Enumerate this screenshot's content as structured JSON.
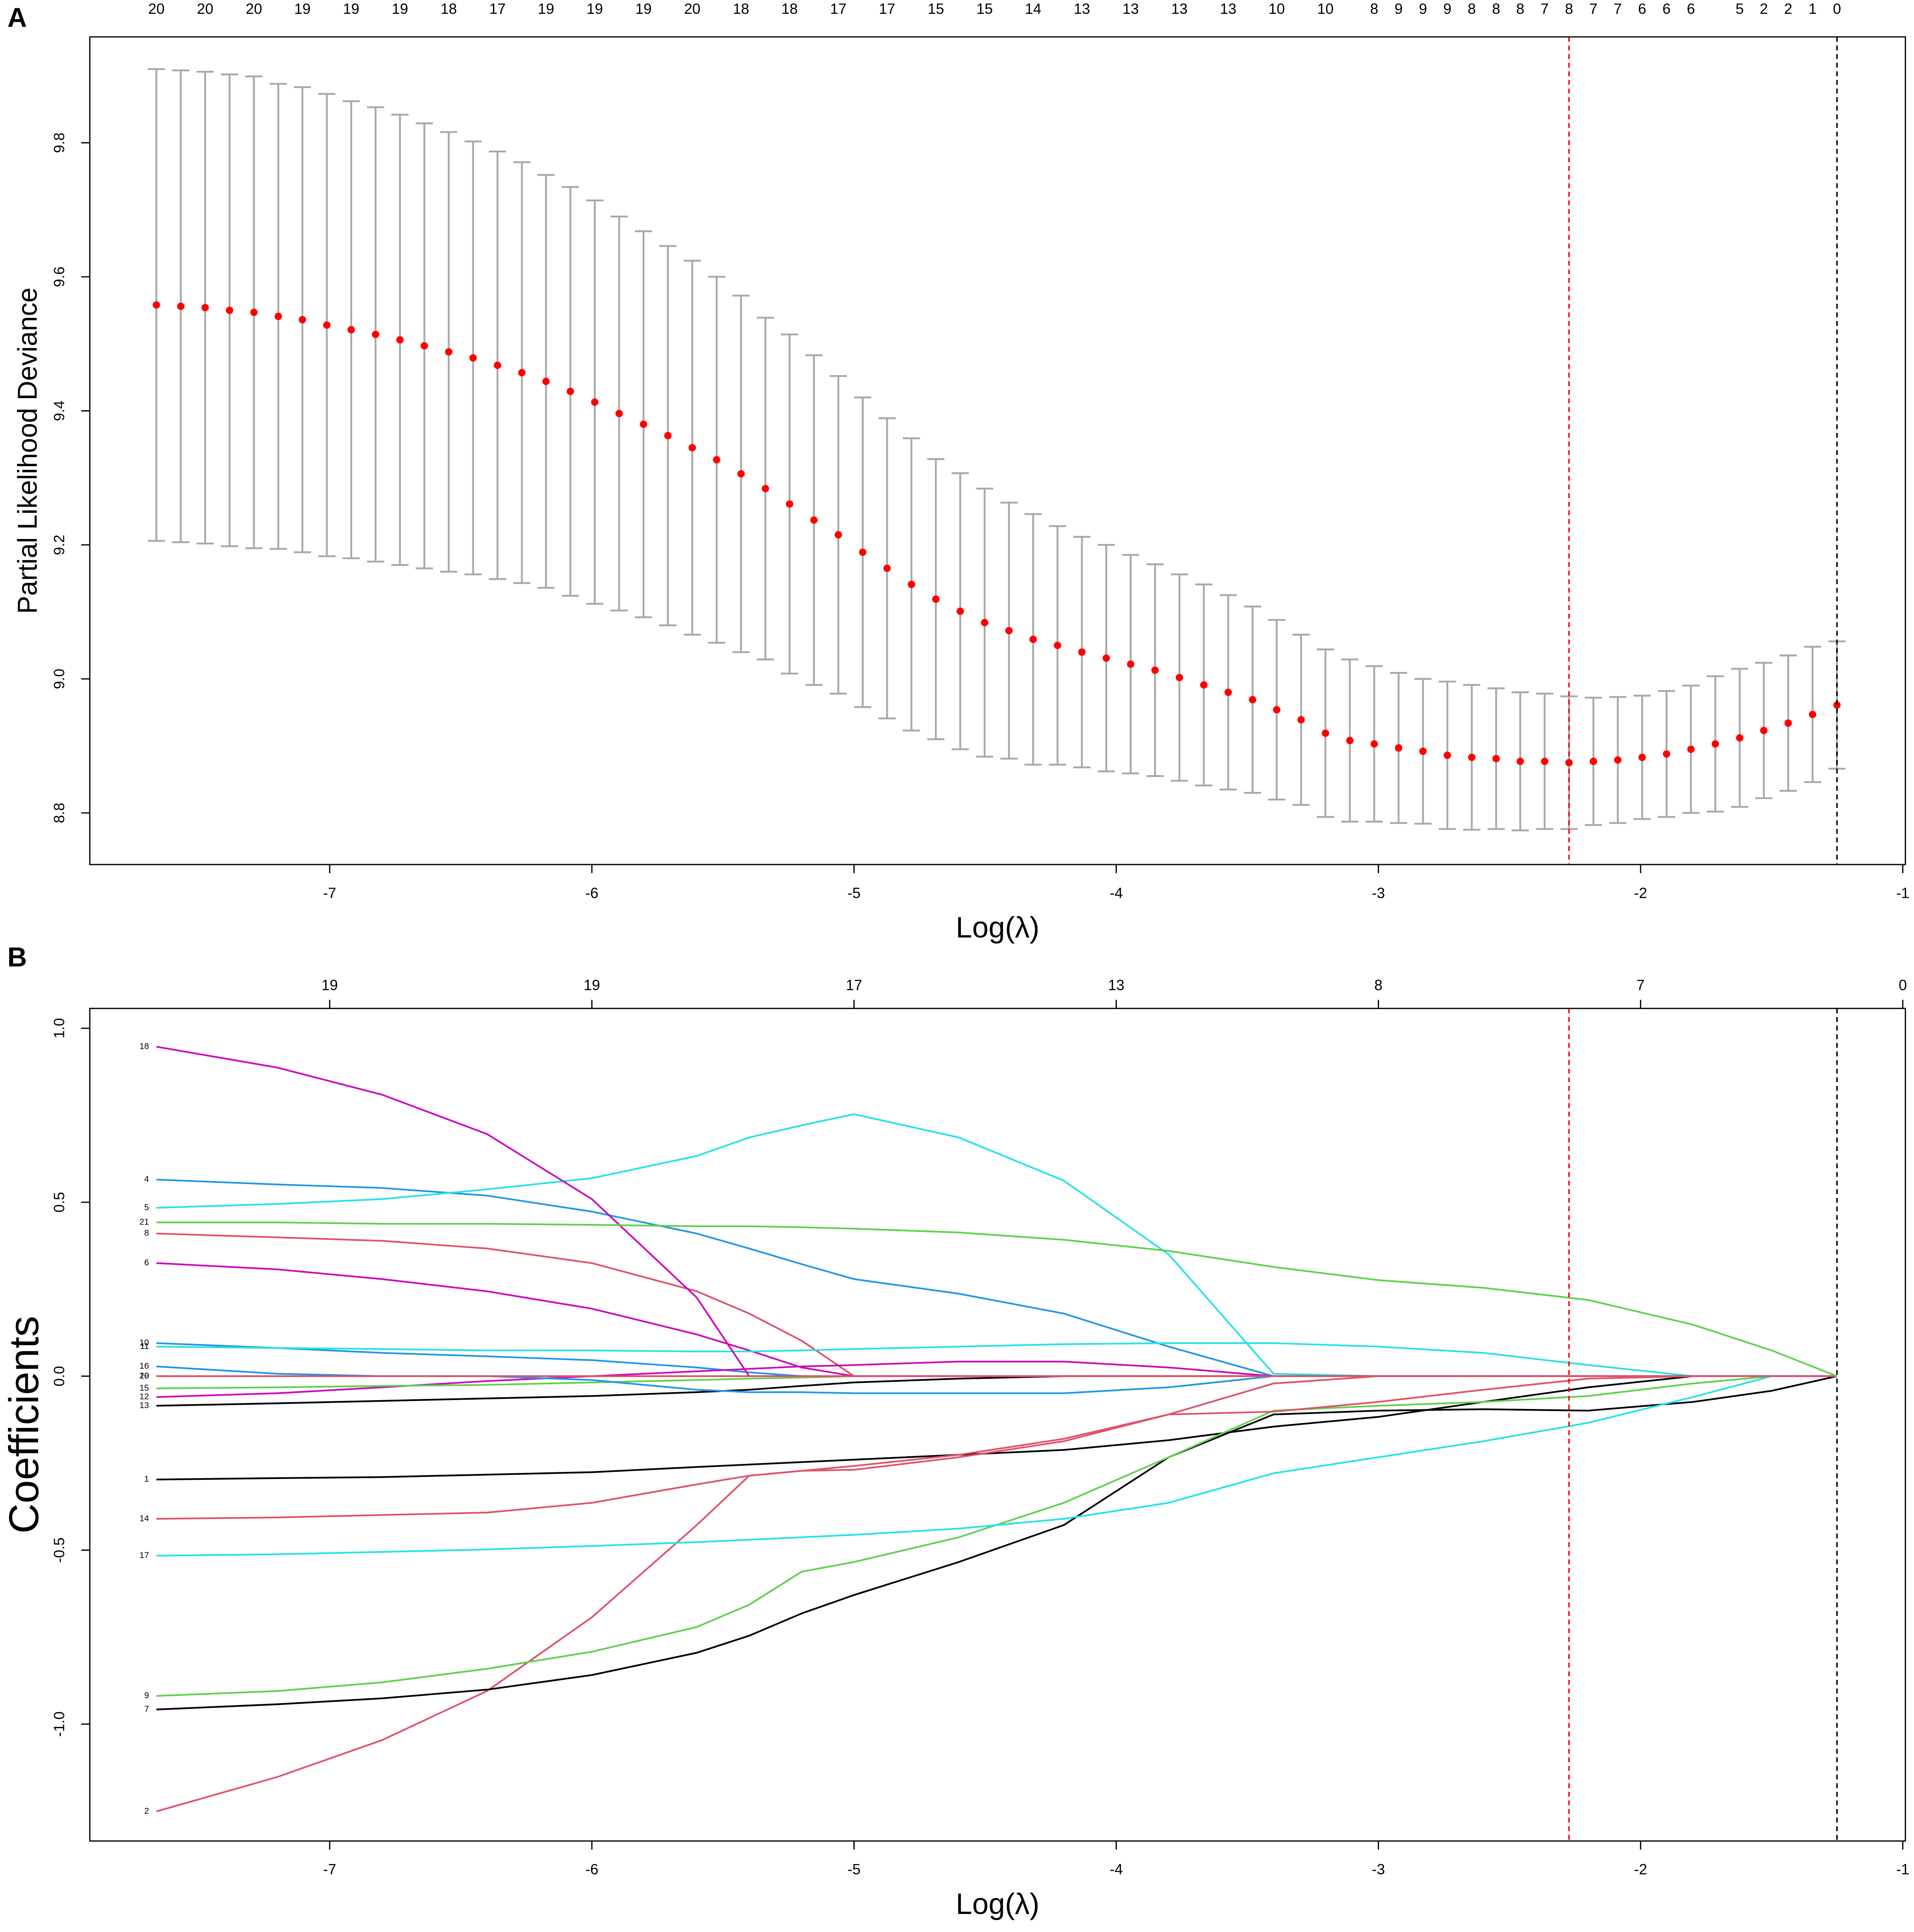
{
  "chart_data": [
    {
      "type": "errorbar",
      "panel": "A",
      "xlabel": "Log(λ)",
      "ylabel": "Partial Likelihood Deviance",
      "color": "#ff0000",
      "error_color": "#a8a8a8",
      "xlim": [
        -7.915,
        -0.99
      ],
      "ylim": [
        8.723,
        9.958
      ],
      "xticks": [
        -7,
        -6,
        -5,
        -4,
        -3,
        -2,
        -1
      ],
      "yticks": [
        8.8,
        {
          "value": 9,
          "label": "9.0"
        },
        9.2,
        9.4,
        9.6,
        9.8
      ],
      "top_ticks": [
        {
          "value": -7.661,
          "label": "20"
        },
        {
          "value": -7.475,
          "label": "20"
        },
        {
          "value": -7.289,
          "label": "20"
        },
        {
          "value": -7.104,
          "label": "19"
        },
        {
          "value": -6.918,
          "label": "19"
        },
        {
          "value": -6.732,
          "label": "19"
        },
        {
          "value": -6.546,
          "label": "18"
        },
        {
          "value": -6.36,
          "label": "17"
        },
        {
          "value": -6.175,
          "label": "19"
        },
        {
          "value": -5.989,
          "label": "19"
        },
        {
          "value": -5.803,
          "label": "19"
        },
        {
          "value": -5.617,
          "label": "20"
        },
        {
          "value": -5.431,
          "label": "18"
        },
        {
          "value": -5.246,
          "label": "18"
        },
        {
          "value": -5.06,
          "label": "17"
        },
        {
          "value": -4.874,
          "label": "17"
        },
        {
          "value": -4.688,
          "label": "15"
        },
        {
          "value": -4.502,
          "label": "15"
        },
        {
          "value": -4.317,
          "label": "14"
        },
        {
          "value": -4.131,
          "label": "13"
        },
        {
          "value": -3.945,
          "label": "13"
        },
        {
          "value": -3.759,
          "label": "13"
        },
        {
          "value": -3.573,
          "label": "13"
        },
        {
          "value": -3.388,
          "label": "10"
        },
        {
          "value": -3.202,
          "label": "10"
        },
        {
          "value": -3.016,
          "label": "8"
        },
        {
          "value": -2.923,
          "label": "9"
        },
        {
          "value": -2.83,
          "label": "9"
        },
        {
          "value": -2.737,
          "label": "9"
        },
        {
          "value": -2.644,
          "label": "8"
        },
        {
          "value": -2.551,
          "label": "8"
        },
        {
          "value": -2.459,
          "label": "8"
        },
        {
          "value": -2.366,
          "label": "7"
        },
        {
          "value": -2.273,
          "label": "8"
        },
        {
          "value": -2.18,
          "label": "7"
        },
        {
          "value": -2.087,
          "label": "7"
        },
        {
          "value": -1.994,
          "label": "6"
        },
        {
          "value": -1.901,
          "label": "6"
        },
        {
          "value": -1.808,
          "label": "6"
        },
        {
          "value": -1.622,
          "label": "5"
        },
        {
          "value": -1.53,
          "label": "2"
        },
        {
          "value": -1.437,
          "label": "2"
        },
        {
          "value": -1.344,
          "label": "1"
        },
        {
          "value": -1.251,
          "label": "0"
        }
      ],
      "vlines": [
        {
          "value": -2.273,
          "color": "#ff0000"
        },
        {
          "value": -1.251,
          "color": "#000000"
        }
      ],
      "x": [
        -7.661,
        -7.568,
        -7.475,
        -7.382,
        -7.289,
        -7.196,
        -7.104,
        -7.011,
        -6.918,
        -6.825,
        -6.732,
        -6.639,
        -6.546,
        -6.453,
        -6.36,
        -6.267,
        -6.175,
        -6.082,
        -5.989,
        -5.896,
        -5.803,
        -5.71,
        -5.617,
        -5.524,
        -5.431,
        -5.338,
        -5.246,
        -5.153,
        -5.06,
        -4.967,
        -4.874,
        -4.781,
        -4.688,
        -4.595,
        -4.502,
        -4.409,
        -4.317,
        -4.224,
        -4.131,
        -4.038,
        -3.945,
        -3.852,
        -3.759,
        -3.666,
        -3.573,
        -3.48,
        -3.388,
        -3.295,
        -3.202,
        -3.109,
        -3.016,
        -2.923,
        -2.83,
        -2.737,
        -2.644,
        -2.551,
        -2.459,
        -2.366,
        -2.273,
        -2.18,
        -2.087,
        -1.994,
        -1.901,
        -1.808,
        -1.715,
        -1.622,
        -1.53,
        -1.437,
        -1.344,
        -1.251
      ],
      "values": [
        9.558,
        9.556,
        9.554,
        9.55,
        9.547,
        9.541,
        9.536,
        9.528,
        9.521,
        9.514,
        9.506,
        9.497,
        9.488,
        9.479,
        9.468,
        9.457,
        9.444,
        9.429,
        9.413,
        9.396,
        9.38,
        9.363,
        9.345,
        9.327,
        9.306,
        9.284,
        9.261,
        9.237,
        9.215,
        9.189,
        9.165,
        9.141,
        9.119,
        9.101,
        9.084,
        9.072,
        9.059,
        9.05,
        9.04,
        9.031,
        9.022,
        9.013,
        9.002,
        8.991,
        8.98,
        8.969,
        8.954,
        8.939,
        8.919,
        8.908,
        8.903,
        8.897,
        8.892,
        8.886,
        8.883,
        8.881,
        8.877,
        8.877,
        8.875,
        8.877,
        8.879,
        8.883,
        8.888,
        8.895,
        8.903,
        8.912,
        8.923,
        8.934,
        8.947,
        8.961
      ],
      "errors": [
        0.352,
        0.352,
        0.352,
        0.352,
        0.352,
        0.347,
        0.347,
        0.345,
        0.341,
        0.339,
        0.336,
        0.332,
        0.328,
        0.323,
        0.319,
        0.314,
        0.308,
        0.305,
        0.301,
        0.294,
        0.288,
        0.283,
        0.279,
        0.273,
        0.266,
        0.255,
        0.253,
        0.246,
        0.237,
        0.231,
        0.224,
        0.218,
        0.209,
        0.206,
        0.2,
        0.191,
        0.187,
        0.178,
        0.172,
        0.169,
        0.163,
        0.158,
        0.154,
        0.15,
        0.145,
        0.139,
        0.134,
        0.127,
        0.125,
        0.121,
        0.116,
        0.112,
        0.108,
        0.11,
        0.108,
        0.105,
        0.103,
        0.101,
        0.099,
        0.095,
        0.094,
        0.092,
        0.094,
        0.095,
        0.101,
        0.103,
        0.101,
        0.101,
        0.101,
        0.095
      ]
    },
    {
      "type": "line",
      "panel": "B",
      "xlabel": "Log(λ)",
      "ylabel": "Coefficients",
      "xlim": [
        -7.915,
        -0.99
      ],
      "ylim": [
        -1.336,
        1.057
      ],
      "xticks": [
        -7,
        -6,
        -5,
        -4,
        -3,
        -2,
        -1
      ],
      "yticks": [
        {
          "value": -1,
          "label": "-1.0"
        },
        -0.5,
        {
          "value": 0,
          "label": "0.0"
        },
        0.5,
        {
          "value": 1,
          "label": "1.0"
        }
      ],
      "top_ticks": [
        {
          "value": -7,
          "label": "19"
        },
        {
          "value": -6,
          "label": "19"
        },
        {
          "value": -5,
          "label": "17"
        },
        {
          "value": -4,
          "label": "13"
        },
        {
          "value": -3,
          "label": "8"
        },
        {
          "value": -2,
          "label": "7"
        },
        {
          "value": -1,
          "label": "0"
        }
      ],
      "vlines": [
        {
          "value": -2.273,
          "color": "#ff0000"
        },
        {
          "value": -1.251,
          "color": "#000000"
        }
      ],
      "x": [
        -7.661,
        -7.2,
        -6.8,
        -6.4,
        -6.0,
        -5.6,
        -5.4,
        -5.2,
        -5.0,
        -4.6,
        -4.2,
        -3.8,
        -3.4,
        -3.0,
        -2.6,
        -2.2,
        -1.8,
        -1.5,
        -1.251
      ],
      "series": [
        {
          "name": "1",
          "color": "#000000",
          "values": [
            -0.297,
            -0.293,
            -0.29,
            -0.283,
            -0.276,
            -0.261,
            -0.254,
            -0.247,
            -0.24,
            -0.226,
            -0.212,
            -0.184,
            -0.145,
            -0.117,
            -0.074,
            -0.032,
            0,
            0,
            0
          ]
        },
        {
          "name": "2",
          "color": "#df536b",
          "values": [
            -1.251,
            -1.152,
            -1.046,
            -0.905,
            -0.693,
            -0.428,
            -0.286,
            -0.272,
            -0.269,
            -0.233,
            -0.187,
            -0.11,
            -0.021,
            0,
            0,
            0,
            0,
            0,
            0
          ]
        },
        {
          "name": "4",
          "color": "#2297e6",
          "values": [
            0.565,
            0.551,
            0.541,
            0.519,
            0.473,
            0.41,
            0.367,
            0.322,
            0.279,
            0.237,
            0.18,
            0.085,
            0,
            0,
            0,
            0,
            0,
            0,
            0
          ]
        },
        {
          "name": "5",
          "color": "#28e2e5",
          "values": [
            0.484,
            0.495,
            0.509,
            0.537,
            0.569,
            0.633,
            0.686,
            0.721,
            0.753,
            0.686,
            0.562,
            0.35,
            0.007,
            0,
            0,
            0,
            0,
            0,
            0
          ]
        },
        {
          "name": "6",
          "color": "#cd0bbc",
          "values": [
            0.325,
            0.307,
            0.279,
            0.244,
            0.194,
            0.12,
            0.074,
            0.025,
            0,
            0,
            0,
            0,
            0,
            0,
            0,
            0,
            0,
            0,
            0
          ]
        },
        {
          "name": "7",
          "color": "#000000",
          "values": [
            -0.958,
            -0.943,
            -0.926,
            -0.901,
            -0.859,
            -0.795,
            -0.746,
            -0.682,
            -0.629,
            -0.534,
            -0.428,
            -0.233,
            -0.11,
            -0.099,
            -0.095,
            -0.099,
            -0.074,
            -0.042,
            0
          ]
        },
        {
          "name": "8",
          "color": "#df536b",
          "values": [
            0.41,
            0.399,
            0.389,
            0.367,
            0.325,
            0.244,
            0.18,
            0.102,
            0,
            0,
            0,
            0,
            0,
            0,
            0,
            0,
            0,
            0,
            0
          ]
        },
        {
          "name": "9",
          "color": "#61d04f",
          "values": [
            -0.919,
            -0.905,
            -0.88,
            -0.841,
            -0.792,
            -0.721,
            -0.657,
            -0.562,
            -0.534,
            -0.463,
            -0.364,
            -0.233,
            -0.099,
            -0.085,
            -0.074,
            -0.057,
            -0.021,
            0,
            0
          ]
        },
        {
          "name": "10",
          "color": "#2297e6",
          "values": [
            0.095,
            0.081,
            0.067,
            0.057,
            0.046,
            0.025,
            0.011,
            0,
            0,
            0,
            0,
            0,
            0,
            0,
            0,
            0,
            0,
            0,
            0
          ]
        },
        {
          "name": "11",
          "color": "#28e2e5",
          "values": [
            0.085,
            0.081,
            0.078,
            0.074,
            0.074,
            0.071,
            0.071,
            0.074,
            0.078,
            0.085,
            0.092,
            0.095,
            0.095,
            0.085,
            0.067,
            0.032,
            0,
            0,
            0
          ]
        },
        {
          "name": "12",
          "color": "#cd0bbc",
          "values": [
            -0.06,
            -0.049,
            -0.032,
            -0.014,
            0,
            0.014,
            0.021,
            0.028,
            0.032,
            0.042,
            0.042,
            0.025,
            0,
            0,
            0,
            0,
            0,
            0,
            0
          ]
        },
        {
          "name": "13",
          "color": "#000000",
          "values": [
            -0.085,
            -0.078,
            -0.071,
            -0.064,
            -0.057,
            -0.046,
            -0.039,
            -0.028,
            -0.018,
            -0.007,
            0,
            0,
            0,
            0,
            0,
            0,
            0,
            0,
            0
          ]
        },
        {
          "name": "14",
          "color": "#df536b",
          "values": [
            -0.41,
            -0.406,
            -0.399,
            -0.392,
            -0.364,
            -0.311,
            -0.286,
            -0.272,
            -0.258,
            -0.226,
            -0.18,
            -0.11,
            -0.102,
            -0.074,
            -0.039,
            -0.007,
            0,
            0,
            0
          ]
        },
        {
          "name": "15",
          "color": "#61d04f",
          "values": [
            -0.035,
            -0.032,
            -0.028,
            -0.025,
            -0.018,
            -0.011,
            -0.007,
            -0.004,
            0,
            0,
            0,
            0,
            0,
            0,
            0,
            0,
            0,
            0,
            0
          ]
        },
        {
          "name": "16",
          "color": "#2297e6",
          "values": [
            0.028,
            0.007,
            0,
            0,
            -0.011,
            -0.039,
            -0.046,
            -0.046,
            -0.049,
            -0.049,
            -0.049,
            -0.032,
            0,
            0,
            0,
            0,
            0,
            0,
            0
          ]
        },
        {
          "name": "17",
          "color": "#28e2e5",
          "values": [
            -0.516,
            -0.512,
            -0.505,
            -0.498,
            -0.488,
            -0.477,
            -0.47,
            -0.463,
            -0.456,
            -0.438,
            -0.41,
            -0.364,
            -0.279,
            -0.233,
            -0.187,
            -0.134,
            -0.06,
            0,
            0
          ]
        },
        {
          "name": "18",
          "color": "#cd0bbc",
          "values": [
            0.947,
            0.887,
            0.809,
            0.696,
            0.509,
            0.226,
            0,
            0,
            0,
            0,
            0,
            0,
            0,
            0,
            0,
            0,
            0,
            0,
            0
          ]
        },
        {
          "name": "19",
          "color": "#000000",
          "values": [
            0,
            0,
            0,
            0,
            0,
            0,
            0,
            0,
            0,
            0,
            0,
            0,
            0,
            0,
            0,
            0,
            0,
            0,
            0
          ]
        },
        {
          "name": "20",
          "color": "#df536b",
          "values": [
            0,
            0,
            0,
            0,
            0,
            0,
            0,
            0,
            0,
            0,
            0,
            0,
            0,
            0,
            0,
            0,
            0,
            0,
            0
          ]
        },
        {
          "name": "21",
          "color": "#61d04f",
          "values": [
            0.442,
            0.442,
            0.438,
            0.438,
            0.435,
            0.431,
            0.431,
            0.428,
            0.424,
            0.413,
            0.392,
            0.36,
            0.314,
            0.276,
            0.254,
            0.219,
            0.148,
            0.074,
            0
          ]
        }
      ]
    }
  ]
}
